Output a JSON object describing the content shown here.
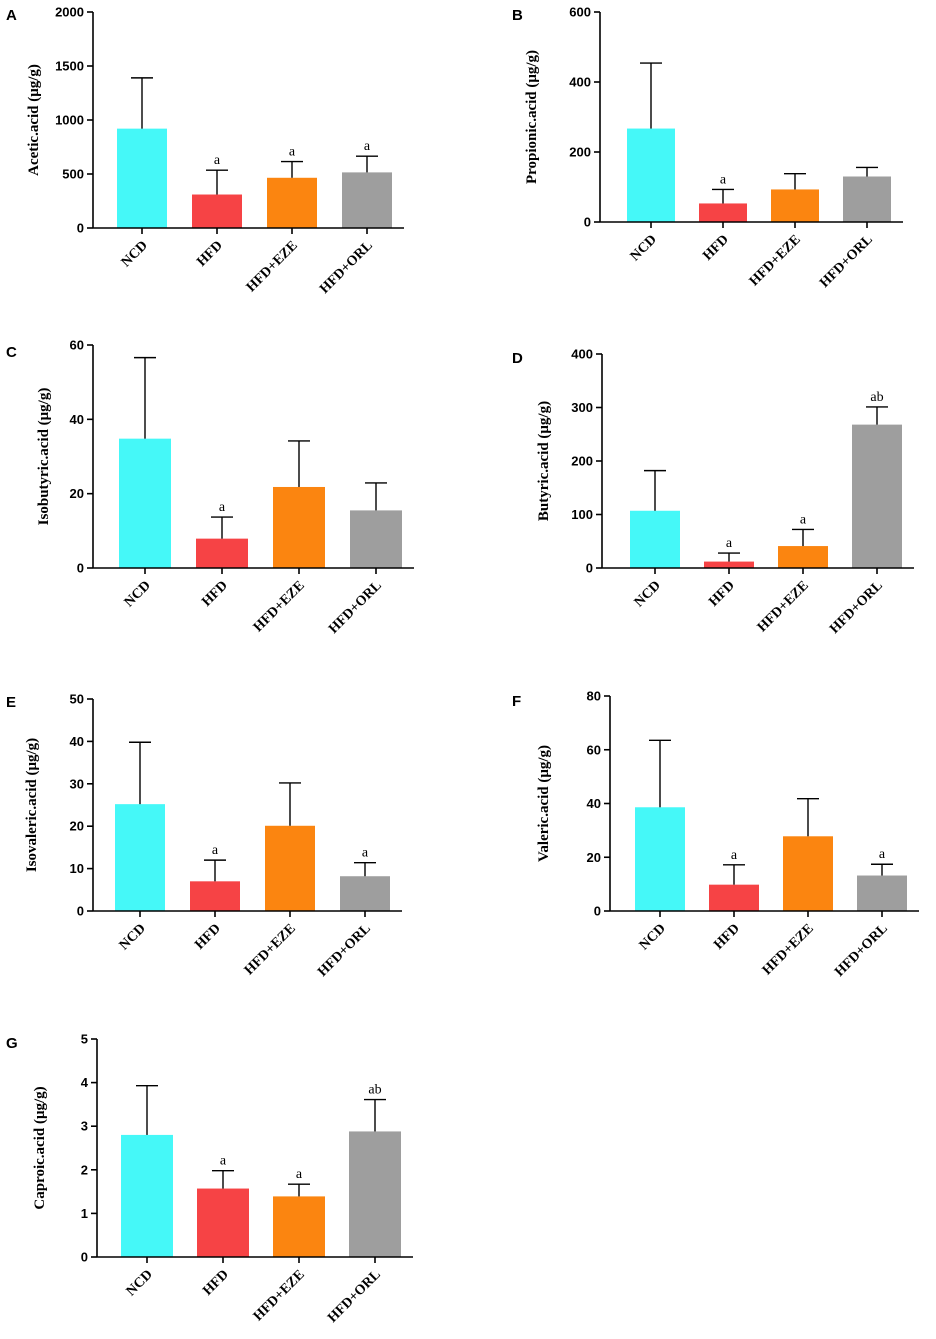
{
  "colors": {
    "NCD": "#45f8f8",
    "HFD": "#f64345",
    "HFD+EZE": "#fb8510",
    "HFD+ORL": "#9e9e9e"
  },
  "chart_data": [
    {
      "panel": "A",
      "type": "bar",
      "ylabel": "Acetic.acid (μg/g)",
      "categories": [
        "NCD",
        "HFD",
        "HFD+EZE",
        "HFD+ORL"
      ],
      "values": [
        920,
        310,
        465,
        515
      ],
      "errors": [
        470,
        225,
        150,
        150
      ],
      "significance": [
        "",
        "a",
        "a",
        "a"
      ],
      "ylim": [
        0,
        2000
      ],
      "yticks": [
        0,
        500,
        1000,
        1500,
        2000
      ]
    },
    {
      "panel": "B",
      "type": "bar",
      "ylabel": "Propionic.acid (μg/g)",
      "categories": [
        "NCD",
        "HFD",
        "HFD+EZE",
        "HFD+ORL"
      ],
      "values": [
        267,
        53,
        93,
        130
      ],
      "errors": [
        187,
        40,
        45,
        26
      ],
      "significance": [
        "",
        "a",
        "",
        ""
      ],
      "ylim": [
        0,
        600
      ],
      "yticks": [
        0,
        200,
        400,
        600
      ]
    },
    {
      "panel": "C",
      "type": "bar",
      "ylabel": "Isobutyric.acid (μg/g)",
      "categories": [
        "NCD",
        "HFD",
        "HFD+EZE",
        "HFD+ORL"
      ],
      "values": [
        34.8,
        7.9,
        21.8,
        15.5
      ],
      "errors": [
        21.8,
        5.8,
        12.4,
        7.4
      ],
      "significance": [
        "",
        "a",
        "",
        ""
      ],
      "ylim": [
        0,
        60
      ],
      "yticks": [
        0,
        20,
        40,
        60
      ]
    },
    {
      "panel": "D",
      "type": "bar",
      "ylabel": "Butyric.acid (μg/g)",
      "categories": [
        "NCD",
        "HFD",
        "HFD+EZE",
        "HFD+ORL"
      ],
      "values": [
        107,
        12,
        41,
        268
      ],
      "errors": [
        75,
        16,
        31,
        33
      ],
      "significance": [
        "",
        "a",
        "a",
        "ab"
      ],
      "ylim": [
        0,
        400
      ],
      "yticks": [
        0,
        100,
        200,
        300,
        400
      ]
    },
    {
      "panel": "E",
      "type": "bar",
      "ylabel": "Isovaleric.acid (μg/g)",
      "categories": [
        "NCD",
        "HFD",
        "HFD+EZE",
        "HFD+ORL"
      ],
      "values": [
        25.2,
        7.0,
        20.1,
        8.2
      ],
      "errors": [
        14.6,
        5.0,
        10.1,
        3.2
      ],
      "significance": [
        "",
        "a",
        "",
        "a"
      ],
      "ylim": [
        0,
        50
      ],
      "yticks": [
        0,
        10,
        20,
        30,
        40,
        50
      ]
    },
    {
      "panel": "F",
      "type": "bar",
      "ylabel": "Valeric.acid (μg/g)",
      "categories": [
        "NCD",
        "HFD",
        "HFD+EZE",
        "HFD+ORL"
      ],
      "values": [
        38.6,
        9.8,
        27.8,
        13.2
      ],
      "errors": [
        24.9,
        7.4,
        14.0,
        4.2
      ],
      "significance": [
        "",
        "a",
        "",
        "a"
      ],
      "ylim": [
        0,
        80
      ],
      "yticks": [
        0,
        20,
        40,
        60,
        80
      ]
    },
    {
      "panel": "G",
      "type": "bar",
      "ylabel": "Caproic.acid (μg/g)",
      "categories": [
        "NCD",
        "HFD",
        "HFD+EZE",
        "HFD+ORL"
      ],
      "values": [
        2.8,
        1.57,
        1.39,
        2.88
      ],
      "errors": [
        1.13,
        0.41,
        0.28,
        0.73
      ],
      "significance": [
        "",
        "a",
        "a",
        "ab"
      ],
      "ylim": [
        0,
        5
      ],
      "yticks": [
        0,
        1,
        2,
        3,
        4,
        5
      ]
    }
  ]
}
